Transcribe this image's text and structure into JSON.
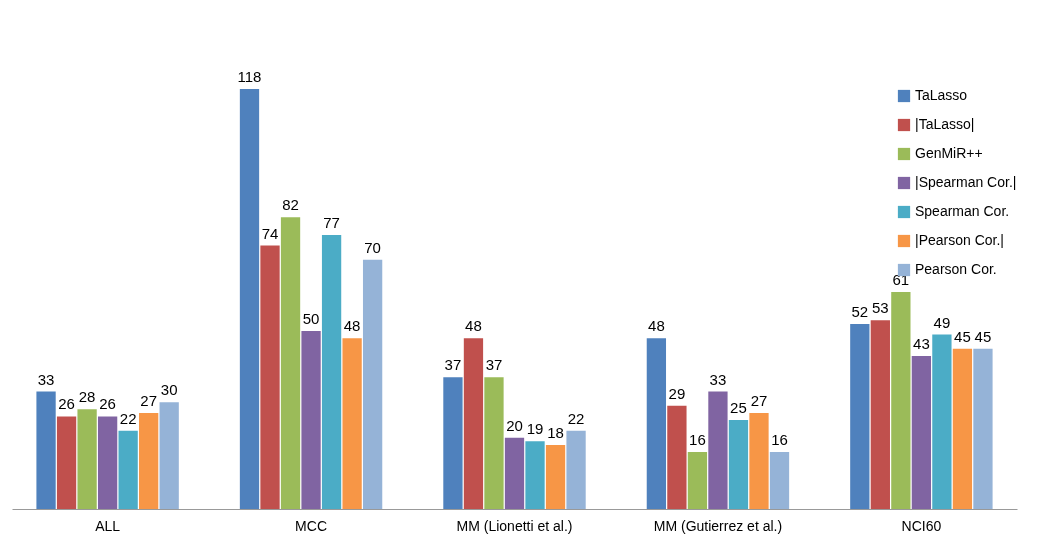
{
  "chart_data": {
    "type": "bar",
    "categories": [
      "ALL",
      "MCC",
      "MM (Lionetti et al.)",
      "MM (Gutierrez et al.)",
      "NCI60"
    ],
    "series": [
      {
        "name": "TaLasso",
        "color": "#4f81bd",
        "values": [
          33,
          118,
          37,
          48,
          52
        ]
      },
      {
        "name": "|TaLasso|",
        "color": "#c0504d",
        "values": [
          26,
          74,
          48,
          29,
          53
        ]
      },
      {
        "name": "GenMiR++",
        "color": "#9bbb59",
        "values": [
          28,
          82,
          37,
          16,
          61
        ]
      },
      {
        "name": "|Spearman Cor.|",
        "color": "#8064a2",
        "values": [
          26,
          50,
          20,
          33,
          43
        ]
      },
      {
        "name": "Spearman Cor.",
        "color": "#4bacc6",
        "values": [
          22,
          77,
          19,
          25,
          49
        ]
      },
      {
        "name": "|Pearson Cor.|",
        "color": "#f79646",
        "values": [
          27,
          48,
          18,
          27,
          45
        ]
      },
      {
        "name": "Pearson Cor.",
        "color": "#95b3d7",
        "values": [
          30,
          70,
          22,
          16,
          45
        ]
      }
    ],
    "data_labels": true,
    "legend": "top right",
    "grid": false
  }
}
